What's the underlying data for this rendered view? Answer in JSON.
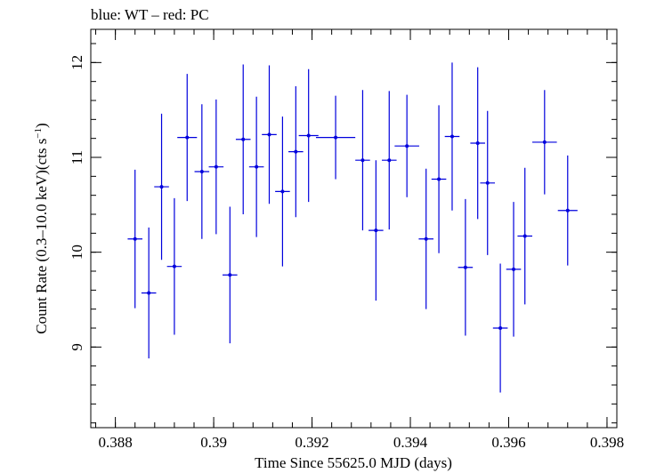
{
  "chart_data": {
    "type": "scatter",
    "title": "blue: WT – red: PC",
    "xlabel": "Time Since 55625.0 MJD (days)",
    "ylabel_main": "Count Rate (0.3–10.0 keV)(cts s",
    "ylabel_sup": "−1",
    "ylabel_end": ")",
    "xlim": [
      0.3875,
      0.3982
    ],
    "ylim": [
      8.15,
      12.35
    ],
    "x_ticks": [
      0.388,
      0.39,
      0.392,
      0.394,
      0.396,
      0.398
    ],
    "x_tick_labels": [
      "0.388",
      "0.39",
      "0.392",
      "0.394",
      "0.396",
      "0.398"
    ],
    "y_ticks": [
      9,
      10,
      11,
      12
    ],
    "y_tick_labels": [
      "9",
      "10",
      "11",
      "12"
    ],
    "grid": false,
    "series": [
      {
        "color": "#0000dd",
        "points": [
          {
            "x": 0.3884,
            "y": 10.14,
            "xerr": 0.00015,
            "yerr": 0.73
          },
          {
            "x": 0.38868,
            "y": 9.57,
            "xerr": 0.00015,
            "yerr": 0.69
          },
          {
            "x": 0.38894,
            "y": 10.69,
            "xerr": 0.00015,
            "yerr": 0.77
          },
          {
            "x": 0.3892,
            "y": 9.85,
            "xerr": 0.00015,
            "yerr": 0.72
          },
          {
            "x": 0.38946,
            "y": 11.21,
            "xerr": 0.0002,
            "yerr": 0.67
          },
          {
            "x": 0.38976,
            "y": 10.85,
            "xerr": 0.00015,
            "yerr": 0.71
          },
          {
            "x": 0.39005,
            "y": 10.9,
            "xerr": 0.00015,
            "yerr": 0.71
          },
          {
            "x": 0.39033,
            "y": 9.76,
            "xerr": 0.00015,
            "yerr": 0.72
          },
          {
            "x": 0.3906,
            "y": 11.19,
            "xerr": 0.00015,
            "yerr": 0.79
          },
          {
            "x": 0.39087,
            "y": 10.9,
            "xerr": 0.00015,
            "yerr": 0.74
          },
          {
            "x": 0.39113,
            "y": 11.24,
            "xerr": 0.00015,
            "yerr": 0.73
          },
          {
            "x": 0.3914,
            "y": 10.64,
            "xerr": 0.00015,
            "yerr": 0.79
          },
          {
            "x": 0.39167,
            "y": 11.06,
            "xerr": 0.00015,
            "yerr": 0.69
          },
          {
            "x": 0.39193,
            "y": 11.23,
            "xerr": 0.0002,
            "yerr": 0.7
          },
          {
            "x": 0.39248,
            "y": 11.21,
            "xerr": 0.0004,
            "yerr": 0.44
          },
          {
            "x": 0.39303,
            "y": 10.97,
            "xerr": 0.00015,
            "yerr": 0.74
          },
          {
            "x": 0.3933,
            "y": 10.23,
            "xerr": 0.00015,
            "yerr": 0.74
          },
          {
            "x": 0.39357,
            "y": 10.97,
            "xerr": 0.00015,
            "yerr": 0.73
          },
          {
            "x": 0.39393,
            "y": 11.12,
            "xerr": 0.00025,
            "yerr": 0.54
          },
          {
            "x": 0.39432,
            "y": 10.14,
            "xerr": 0.00015,
            "yerr": 0.74
          },
          {
            "x": 0.39458,
            "y": 10.77,
            "xerr": 0.00015,
            "yerr": 0.78
          },
          {
            "x": 0.39485,
            "y": 11.22,
            "xerr": 0.00015,
            "yerr": 0.78
          },
          {
            "x": 0.39512,
            "y": 9.84,
            "xerr": 0.00015,
            "yerr": 0.72
          },
          {
            "x": 0.39537,
            "y": 11.15,
            "xerr": 0.00015,
            "yerr": 0.8
          },
          {
            "x": 0.39557,
            "y": 10.73,
            "xerr": 0.00015,
            "yerr": 0.76
          },
          {
            "x": 0.39583,
            "y": 9.2,
            "xerr": 0.00015,
            "yerr": 0.68
          },
          {
            "x": 0.3961,
            "y": 9.82,
            "xerr": 0.00015,
            "yerr": 0.71
          },
          {
            "x": 0.39633,
            "y": 10.17,
            "xerr": 0.00015,
            "yerr": 0.72
          },
          {
            "x": 0.39673,
            "y": 11.16,
            "xerr": 0.00025,
            "yerr": 0.55
          },
          {
            "x": 0.3972,
            "y": 10.44,
            "xerr": 0.0002,
            "yerr": 0.58
          }
        ]
      }
    ]
  }
}
